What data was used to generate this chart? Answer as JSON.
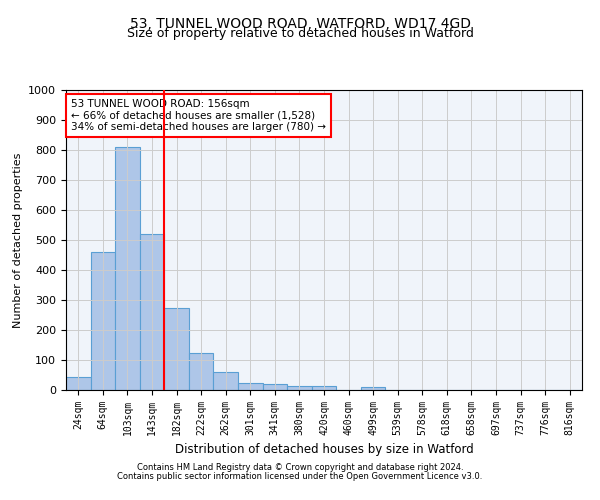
{
  "title": "53, TUNNEL WOOD ROAD, WATFORD, WD17 4GD",
  "subtitle": "Size of property relative to detached houses in Watford",
  "xlabel": "Distribution of detached houses by size in Watford",
  "ylabel": "Number of detached properties",
  "categories": [
    "24sqm",
    "64sqm",
    "103sqm",
    "143sqm",
    "182sqm",
    "222sqm",
    "262sqm",
    "301sqm",
    "341sqm",
    "380sqm",
    "420sqm",
    "460sqm",
    "499sqm",
    "539sqm",
    "578sqm",
    "618sqm",
    "658sqm",
    "697sqm",
    "737sqm",
    "776sqm",
    "816sqm"
  ],
  "values": [
    45,
    460,
    810,
    520,
    275,
    125,
    60,
    25,
    20,
    13,
    13,
    0,
    10,
    0,
    0,
    0,
    0,
    0,
    0,
    0,
    0
  ],
  "bar_color": "#aec6e8",
  "bar_edge_color": "#5a9fd4",
  "vline_color": "red",
  "annotation_text": "53 TUNNEL WOOD ROAD: 156sqm\n← 66% of detached houses are smaller (1,528)\n34% of semi-detached houses are larger (780) →",
  "annotation_box_color": "white",
  "annotation_box_edge": "red",
  "ylim": [
    0,
    1000
  ],
  "yticks": [
    0,
    100,
    200,
    300,
    400,
    500,
    600,
    700,
    800,
    900,
    1000
  ],
  "grid_color": "#cccccc",
  "bg_color": "#f0f4fa",
  "footnote1": "Contains HM Land Registry data © Crown copyright and database right 2024.",
  "footnote2": "Contains public sector information licensed under the Open Government Licence v3.0.",
  "title_fontsize": 10,
  "subtitle_fontsize": 9
}
